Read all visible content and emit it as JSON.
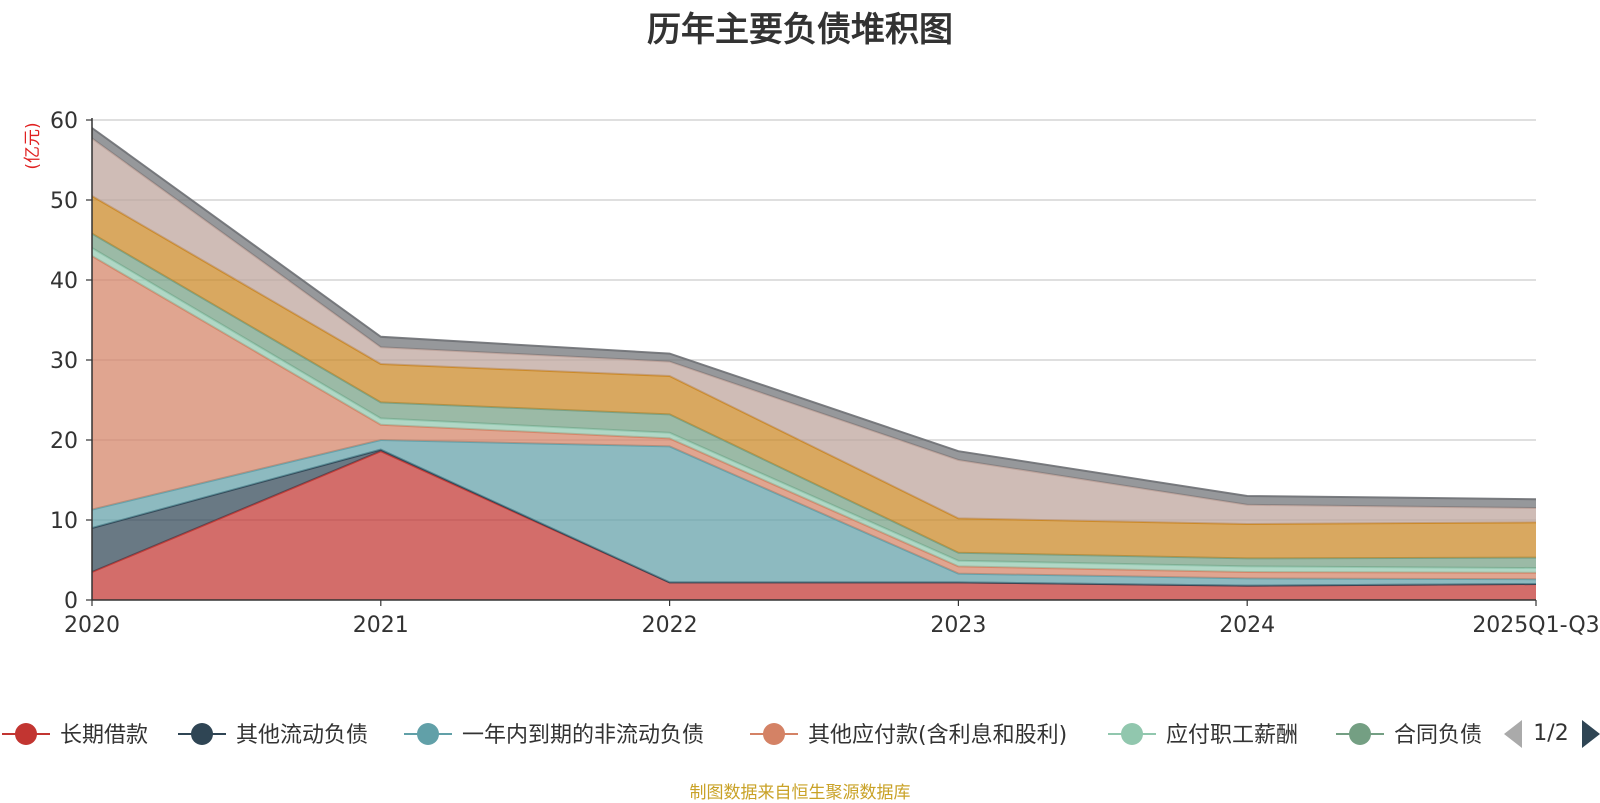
{
  "title": "历年主要负债堆积图",
  "source_note": "制图数据来自恒生聚源数据库",
  "legend_page": "1/2",
  "legend_prev_icon": "triangle-left-icon",
  "legend_next_icon": "triangle-right-icon",
  "chart_data": {
    "type": "area",
    "stacked": true,
    "title": "历年主要负债堆积图",
    "ylabel": "(亿元)",
    "xlabel": "",
    "ylim": [
      0,
      60
    ],
    "yticks": [
      0,
      10,
      20,
      30,
      40,
      50,
      60
    ],
    "grid": true,
    "legend_position": "bottom",
    "categories": [
      "2020",
      "2021",
      "2022",
      "2023",
      "2024",
      "2025Q1-Q3"
    ],
    "series": [
      {
        "name": "长期借款",
        "color": "#c23531",
        "values": [
          3.5,
          18.6,
          2.2,
          2.2,
          1.8,
          2.0
        ],
        "in_legend": true
      },
      {
        "name": "其他流动负债",
        "color": "#2f4554",
        "values": [
          5.5,
          0.2,
          0.0,
          0.0,
          0.0,
          0.0
        ],
        "in_legend": true
      },
      {
        "name": "一年内到期的非流动负债",
        "color": "#61a0a8",
        "values": [
          2.3,
          1.2,
          17.0,
          1.1,
          0.9,
          0.6
        ],
        "in_legend": true
      },
      {
        "name": "其他应付款(含利息和股利)",
        "color": "#d48265",
        "values": [
          31.7,
          1.9,
          1.0,
          0.9,
          0.8,
          0.8
        ],
        "in_legend": true
      },
      {
        "name": "应付职工薪酬",
        "color": "#91c7ae",
        "values": [
          1.0,
          0.8,
          0.7,
          0.7,
          0.7,
          0.6
        ],
        "in_legend": true
      },
      {
        "name": "合同负债",
        "color": "#749f83",
        "values": [
          1.8,
          2.0,
          2.3,
          1.0,
          1.0,
          1.3
        ],
        "in_legend": true
      },
      {
        "name": "",
        "color": "#ca8622",
        "values": [
          4.7,
          4.8,
          4.8,
          4.3,
          4.3,
          4.4
        ],
        "in_legend": false
      },
      {
        "name": "",
        "color": "#bda29a",
        "values": [
          7.2,
          2.1,
          1.8,
          7.3,
          2.4,
          1.8
        ],
        "in_legend": false
      },
      {
        "name": "",
        "color": "#6e7074",
        "values": [
          1.3,
          1.3,
          1.0,
          1.1,
          1.1,
          1.1
        ],
        "in_legend": false
      }
    ]
  }
}
